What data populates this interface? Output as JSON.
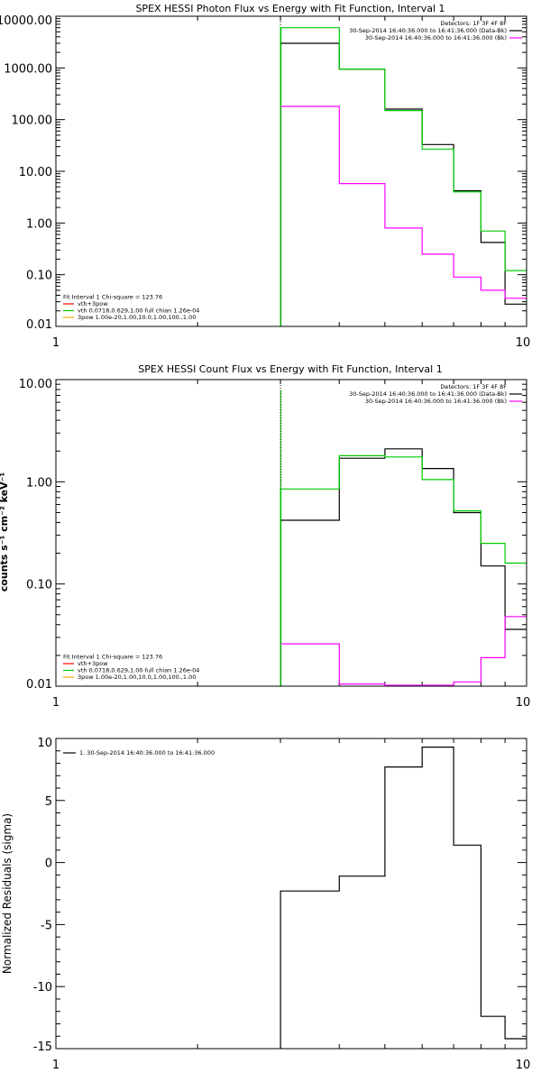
{
  "chart_data": [
    {
      "type": "line",
      "step": true,
      "title": "SPEX HESSI Photon Flux vs Energy with Fit Function, Interval 1",
      "xlabel": "",
      "ylabel": "",
      "xscale": "log",
      "yscale": "log",
      "xlim": [
        1,
        10
      ],
      "ylim": [
        0.01,
        10000
      ],
      "xticks": [
        {
          "v": 1,
          "label": "1"
        },
        {
          "v": 10,
          "label": "10"
        }
      ],
      "yticks": [
        {
          "v": 10000,
          "label": "10000.00"
        },
        {
          "v": 1000,
          "label": "1000.00"
        },
        {
          "v": 100,
          "label": "100.00"
        },
        {
          "v": 10,
          "label": "10.00"
        },
        {
          "v": 1,
          "label": "1.00"
        },
        {
          "v": 0.1,
          "label": "0.10"
        },
        {
          "v": 0.01,
          "label": "0.01"
        }
      ],
      "vline": {
        "x": 3,
        "color": "#00aa00"
      },
      "edges": [
        3,
        4,
        5,
        6,
        7,
        8,
        9,
        10
      ],
      "series": [
        {
          "name": "30-Sep-2014 16:40:36.000 to 16:41:36.000 (Data-Bk)",
          "color": "#000000",
          "values": [
            3000,
            950,
            160,
            33,
            4.2,
            0.42,
            0.027
          ]
        },
        {
          "name": "30-Sep-2014 16:40:36.000 to 16:41:36.000 (Bk)",
          "color": "#ff00ff",
          "values": [
            180,
            5.8,
            0.8,
            0.25,
            0.09,
            0.05,
            0.035
          ]
        },
        {
          "name": "vth 0.0718,0.629,1.00  full chian 1.26e-04",
          "color": "#00cc00",
          "values": [
            6000,
            950,
            150,
            27,
            4.0,
            0.7,
            0.12
          ]
        }
      ],
      "legend_top": {
        "position": "top-right",
        "lines": [
          {
            "text": "Detectors: 1F 3F 4F 8F",
            "color": ""
          },
          {
            "text": "30-Sep-2014 16:40:36.000 to 16:41:36.000 (Data-Bk)",
            "color": "#000000"
          },
          {
            "text": "30-Sep-2014 16:40:36.000 to 16:41:36.000 (Bk)",
            "color": "#ff00ff"
          }
        ]
      },
      "legend_fit": {
        "position": "bottom-left",
        "lines": [
          {
            "text": "Fit Interval 1    Chi-square = 123.76",
            "color": ""
          },
          {
            "text": "vth+3pow",
            "color": "#ff0000"
          },
          {
            "text": "vth 0.0718,0.629,1.00  full chian 1.26e-04",
            "color": "#00cc00"
          },
          {
            "text": "3pow 1.00e-20,1.00,10.0,1.00,100.,1.00",
            "color": "#ffaa00"
          }
        ]
      }
    },
    {
      "type": "line",
      "step": true,
      "title": "SPEX HESSI Count Flux vs Energy with Fit Function, Interval 1",
      "xlabel": "",
      "ylabel": "counts s⁻¹ cm⁻² keV⁻¹",
      "xscale": "log",
      "yscale": "log",
      "xlim": [
        1,
        10
      ],
      "ylim": [
        0.01,
        10
      ],
      "xticks": [
        {
          "v": 1,
          "label": "1"
        },
        {
          "v": 10,
          "label": "10"
        }
      ],
      "yticks": [
        {
          "v": 10,
          "label": "10.00"
        },
        {
          "v": 1,
          "label": "1.00"
        },
        {
          "v": 0.1,
          "label": "0.10"
        },
        {
          "v": 0.01,
          "label": "0.01"
        }
      ],
      "vline": {
        "x": 3,
        "color": "#00aa00"
      },
      "edges": [
        3,
        4,
        5,
        6,
        7,
        8,
        9,
        10
      ],
      "series": [
        {
          "name": "30-Sep-2014 16:40:36.000 to 16:41:36.000 (Data-Bk)",
          "color": "#000000",
          "values": [
            0.42,
            1.7,
            2.1,
            1.35,
            0.5,
            0.15,
            0.036
          ]
        },
        {
          "name": "30-Sep-2014 16:40:36.000 to 16:41:36.000 (Bk)",
          "color": "#ff00ff",
          "values": [
            0.026,
            0.0105,
            0.0102,
            0.0102,
            0.011,
            0.019,
            0.048
          ]
        },
        {
          "name": "vth 0.0718,0.629,1.00  full chian 1.26e-04",
          "color": "#00cc00",
          "values": [
            0.85,
            1.8,
            1.75,
            1.05,
            0.52,
            0.25,
            0.16
          ]
        }
      ],
      "legend_top": {
        "position": "top-right",
        "lines": [
          {
            "text": "Detectors: 1F 3F 4F 8F",
            "color": ""
          },
          {
            "text": "30-Sep-2014 16:40:36.000 to 16:41:36.000 (Data-Bk)",
            "color": "#000000"
          },
          {
            "text": "30-Sep-2014 16:40:36.000 to 16:41:36.000 (Bk)",
            "color": "#ff00ff"
          }
        ]
      },
      "legend_fit": {
        "position": "bottom-left",
        "lines": [
          {
            "text": "Fit Interval 1    Chi-square = 123.76",
            "color": ""
          },
          {
            "text": "vth+3pow",
            "color": "#ff0000"
          },
          {
            "text": "vth 0.0718,0.629,1.00  full chian 1.26e-04",
            "color": "#00cc00"
          },
          {
            "text": "3pow 1.00e-20,1.00,10.0,1.00,100.,1.00",
            "color": "#ffaa00"
          }
        ]
      }
    },
    {
      "type": "line",
      "step": true,
      "title": "",
      "xlabel": "",
      "ylabel": "Normalized Residuals (sigma)",
      "xscale": "log",
      "yscale": "linear",
      "xlim": [
        1,
        10
      ],
      "ylim": [
        -15,
        10
      ],
      "xticks": [
        {
          "v": 1,
          "label": "1"
        },
        {
          "v": 10,
          "label": "10"
        }
      ],
      "yticks": [
        {
          "v": 10,
          "label": "10"
        },
        {
          "v": 5,
          "label": "5"
        },
        {
          "v": 0,
          "label": "0"
        },
        {
          "v": -5,
          "label": "-5"
        },
        {
          "v": -10,
          "label": "-10"
        },
        {
          "v": -15,
          "label": "-15"
        }
      ],
      "edges": [
        3,
        4,
        5,
        6,
        7,
        8,
        9,
        10
      ],
      "series": [
        {
          "name": "1. 30-Sep-2014 16:40:36.000 to 16:41:36.000",
          "color": "#000000",
          "values": [
            -2.3,
            -1.1,
            7.7,
            9.3,
            1.4,
            -12.4,
            -14.2
          ]
        }
      ],
      "legend_top": {
        "position": "top-left",
        "lines": [
          {
            "text": "1. 30-Sep-2014 16:40:36.000 to 16:41:36.000",
            "color": "#000000"
          }
        ]
      }
    }
  ]
}
